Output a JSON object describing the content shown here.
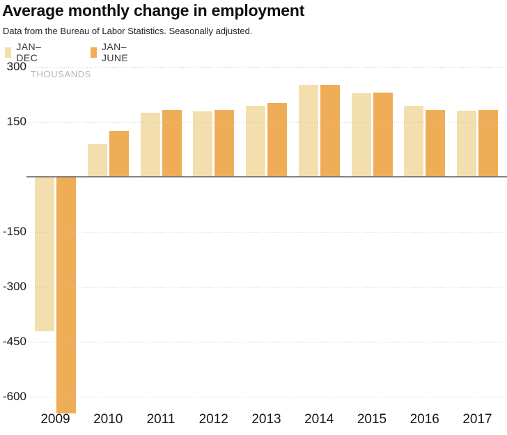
{
  "title": "Average monthly change in employment",
  "subtitle": "Data from the Bureau of Labor Statistics. Seasonally adjusted.",
  "legend": [
    {
      "label": "JAN–DEC",
      "color": "#F3DFAE"
    },
    {
      "label": "JAN–JUNE",
      "color": "#EFAD58"
    }
  ],
  "colors": {
    "jan_dec_bar": "#F3DFAE",
    "jan_june_bar": "#EFAD58",
    "gridline": "#C2C2C2",
    "zero_line": "#6E6E6E",
    "unit_label_text": "#B5B5B5",
    "text": "#161616"
  },
  "chart_data": {
    "type": "bar",
    "title": "Average monthly change in employment",
    "subtitle": "Data from the Bureau of Labor Statistics. Seasonally adjusted.",
    "ylabel": "THOUSANDS",
    "xlabel": "",
    "categories": [
      "2009",
      "2010",
      "2011",
      "2012",
      "2013",
      "2014",
      "2015",
      "2016",
      "2017"
    ],
    "series": [
      {
        "name": "JAN–DEC",
        "color": "#F3DFAE",
        "values": [
          -422,
          89,
          175,
          179,
          194,
          250,
          227,
          193,
          181
        ]
      },
      {
        "name": "JAN–JUNE",
        "color": "#EFAD58",
        "values": [
          -645,
          125,
          182,
          182,
          201,
          251,
          229,
          183,
          182
        ]
      }
    ],
    "units": "thousands",
    "ylim": [
      -680,
      300
    ],
    "yticks": [
      {
        "value": 300,
        "label": "300"
      },
      {
        "value": 150,
        "label": "150"
      },
      {
        "value": -150,
        "label": "-150"
      },
      {
        "value": -300,
        "label": "-300"
      },
      {
        "value": -450,
        "label": "-450"
      },
      {
        "value": -600,
        "label": "-600"
      }
    ],
    "zero_baseline": true,
    "grid": "horizontal-dotted",
    "legend_position": "top-left"
  }
}
